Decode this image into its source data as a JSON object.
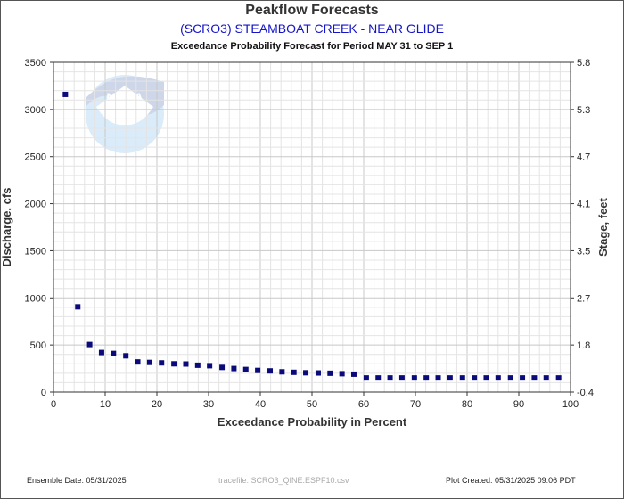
{
  "header": {
    "title": "Peakflow Forecasts",
    "subtitle": "(SCRO3) STEAMBOAT CREEK - NEAR GLIDE",
    "subsubtitle": "Exceedance Probability Forecast for Period MAY 31 to SEP 1"
  },
  "footer": {
    "ensemble": "Ensemble Date: 05/31/2025",
    "tracefile": "tracefile: SCRO3_QINE.ESPF10.csv",
    "plot_created": "Plot Created: 05/31/2025 09:06 PDT"
  },
  "chart_data": {
    "type": "scatter",
    "xlabel": "Exceedance Probability in Percent",
    "ylabel": "Discharge, cfs",
    "y2label": "Stage, feet",
    "xlim": [
      0,
      100
    ],
    "ylim": [
      0,
      3500
    ],
    "xticks": [
      0,
      10,
      20,
      30,
      40,
      50,
      60,
      70,
      80,
      90,
      100
    ],
    "yticks": [
      0,
      500,
      1000,
      1500,
      2000,
      2500,
      3000,
      3500
    ],
    "y2ticks": [
      "-0.4",
      "1.8",
      "2.7",
      "3.5",
      "4.1",
      "4.7",
      "5.3",
      "5.8"
    ],
    "grid": true,
    "marker_color": "#0a0a7a",
    "x": [
      2.3,
      4.7,
      7.0,
      9.3,
      11.6,
      14.0,
      16.3,
      18.6,
      20.9,
      23.3,
      25.6,
      27.9,
      30.2,
      32.6,
      34.9,
      37.2,
      39.5,
      41.9,
      44.2,
      46.5,
      48.8,
      51.2,
      53.5,
      55.8,
      58.1,
      60.5,
      62.8,
      65.1,
      67.4,
      69.8,
      72.1,
      74.4,
      76.7,
      79.1,
      81.4,
      83.7,
      86.0,
      88.4,
      90.7,
      93.0,
      95.3,
      97.7
    ],
    "y": [
      3160,
      905,
      505,
      420,
      410,
      385,
      320,
      315,
      310,
      300,
      298,
      285,
      280,
      262,
      250,
      240,
      230,
      225,
      215,
      210,
      205,
      203,
      200,
      195,
      190,
      150,
      150,
      150,
      150,
      150,
      150,
      150,
      150,
      150,
      150,
      150,
      150,
      150,
      150,
      150,
      150,
      150
    ]
  },
  "watermark": {
    "label": "NOAA",
    "icon": "noaa-logo"
  }
}
